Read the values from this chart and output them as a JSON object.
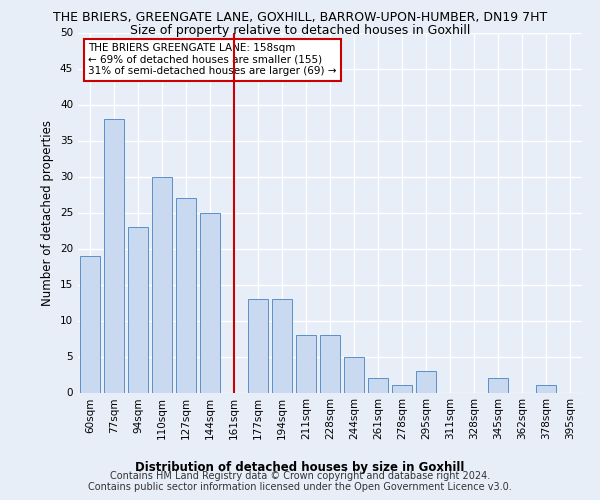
{
  "title": "THE BRIERS, GREENGATE LANE, GOXHILL, BARROW-UPON-HUMBER, DN19 7HT",
  "subtitle": "Size of property relative to detached houses in Goxhill",
  "xlabel": "Distribution of detached houses by size in Goxhill",
  "ylabel": "Number of detached properties",
  "categories": [
    "60sqm",
    "77sqm",
    "94sqm",
    "110sqm",
    "127sqm",
    "144sqm",
    "161sqm",
    "177sqm",
    "194sqm",
    "211sqm",
    "228sqm",
    "244sqm",
    "261sqm",
    "278sqm",
    "295sqm",
    "311sqm",
    "328sqm",
    "345sqm",
    "362sqm",
    "378sqm",
    "395sqm"
  ],
  "values": [
    19,
    38,
    23,
    30,
    27,
    25,
    0,
    13,
    13,
    8,
    8,
    5,
    2,
    1,
    3,
    0,
    0,
    2,
    0,
    1,
    0
  ],
  "bar_color": "#c8d9f0",
  "bar_edge_color": "#5b8fc9",
  "vline_x_index": 6,
  "vline_color": "#cc0000",
  "annotation_text": "THE BRIERS GREENGATE LANE: 158sqm\n← 69% of detached houses are smaller (155)\n31% of semi-detached houses are larger (69) →",
  "annotation_box_color": "#ffffff",
  "annotation_box_edge_color": "#cc0000",
  "ylim": [
    0,
    50
  ],
  "yticks": [
    0,
    5,
    10,
    15,
    20,
    25,
    30,
    35,
    40,
    45,
    50
  ],
  "footer": "Contains HM Land Registry data © Crown copyright and database right 2024.\nContains public sector information licensed under the Open Government Licence v3.0.",
  "background_color": "#e8eef8",
  "grid_color": "#ffffff",
  "title_fontsize": 9,
  "subtitle_fontsize": 9,
  "axis_label_fontsize": 8.5,
  "tick_fontsize": 7.5,
  "footer_fontsize": 7,
  "annotation_fontsize": 7.5
}
